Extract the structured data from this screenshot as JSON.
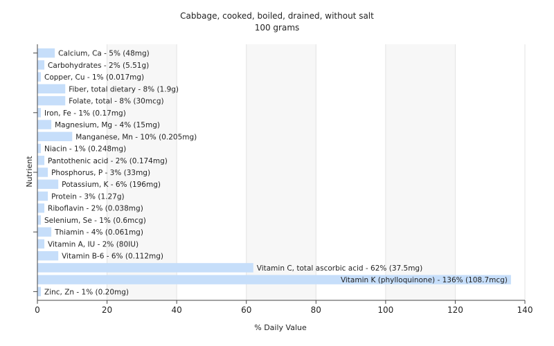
{
  "chart_data": {
    "type": "bar",
    "orientation": "horizontal",
    "title": "Cabbage, cooked, boiled, drained, without salt",
    "subtitle": "100 grams",
    "xlabel": "% Daily Value",
    "ylabel": "Nutrient",
    "xlim": [
      0,
      140
    ],
    "xticks": [
      0,
      20,
      40,
      60,
      80,
      100,
      120,
      140
    ],
    "grid": true,
    "bar_color": "#c6defa",
    "categories": [
      "Calcium, Ca",
      "Carbohydrates",
      "Copper, Cu",
      "Fiber, total dietary",
      "Folate, total",
      "Iron, Fe",
      "Magnesium, Mg",
      "Manganese, Mn",
      "Niacin",
      "Pantothenic acid",
      "Phosphorus, P",
      "Potassium, K",
      "Protein",
      "Riboflavin",
      "Selenium, Se",
      "Thiamin",
      "Vitamin A, IU",
      "Vitamin B-6",
      "Vitamin C, total ascorbic acid",
      "Vitamin K (phylloquinone)",
      "Zinc, Zn"
    ],
    "values": [
      5,
      2,
      1,
      8,
      8,
      1,
      4,
      10,
      1,
      2,
      3,
      6,
      3,
      2,
      1,
      4,
      2,
      6,
      62,
      136,
      1
    ],
    "labels": [
      "Calcium, Ca - 5% (48mg)",
      "Carbohydrates - 2% (5.51g)",
      "Copper, Cu - 1% (0.017mg)",
      "Fiber, total dietary - 8% (1.9g)",
      "Folate, total - 8% (30mcg)",
      "Iron, Fe - 1% (0.17mg)",
      "Magnesium, Mg - 4% (15mg)",
      "Manganese, Mn - 10% (0.205mg)",
      "Niacin - 1% (0.248mg)",
      "Pantothenic acid - 2% (0.174mg)",
      "Phosphorus, P - 3% (33mg)",
      "Potassium, K - 6% (196mg)",
      "Protein - 3% (1.27g)",
      "Riboflavin - 2% (0.038mg)",
      "Selenium, Se - 1% (0.6mcg)",
      "Thiamin - 4% (0.061mg)",
      "Vitamin A, IU - 2% (80IU)",
      "Vitamin B-6 - 6% (0.112mg)",
      "Vitamin C, total ascorbic acid - 62% (37.5mg)",
      "Vitamin K (phylloquinone) - 136% (108.7mcg)",
      "Zinc, Zn - 1% (0.20mg)"
    ]
  }
}
